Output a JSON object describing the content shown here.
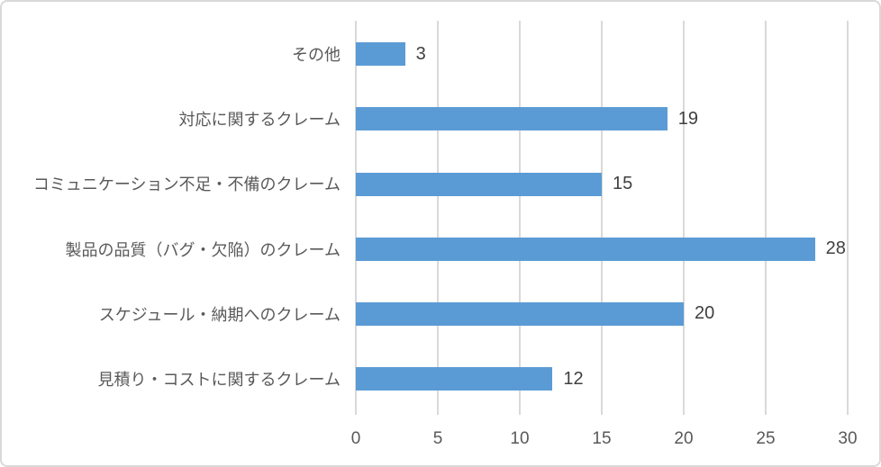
{
  "chart_data": {
    "type": "bar",
    "orientation": "horizontal",
    "title": "",
    "categories": [
      "その他",
      "対応に関するクレーム",
      "コミュニケーション不足・不備のクレーム",
      "製品の品質（バグ・欠陥）のクレーム",
      "スケジュール・納期へのクレーム",
      "見積り・コストに関するクレーム"
    ],
    "values": [
      3,
      19,
      15,
      28,
      20,
      12
    ],
    "x_ticks": [
      0,
      5,
      10,
      15,
      20,
      25,
      30
    ],
    "xlim": [
      0,
      30
    ],
    "xlabel": "",
    "ylabel": "",
    "grid": "vertical",
    "legend": "none",
    "data_labels_shown": true,
    "colors": {
      "bar": "#5B9BD5",
      "gridline": "#D9D9D9",
      "category_label": "#595959",
      "tick_label": "#595959",
      "data_label": "#404040",
      "background": "#FFFFFF",
      "border": "#D9D9D9"
    }
  }
}
